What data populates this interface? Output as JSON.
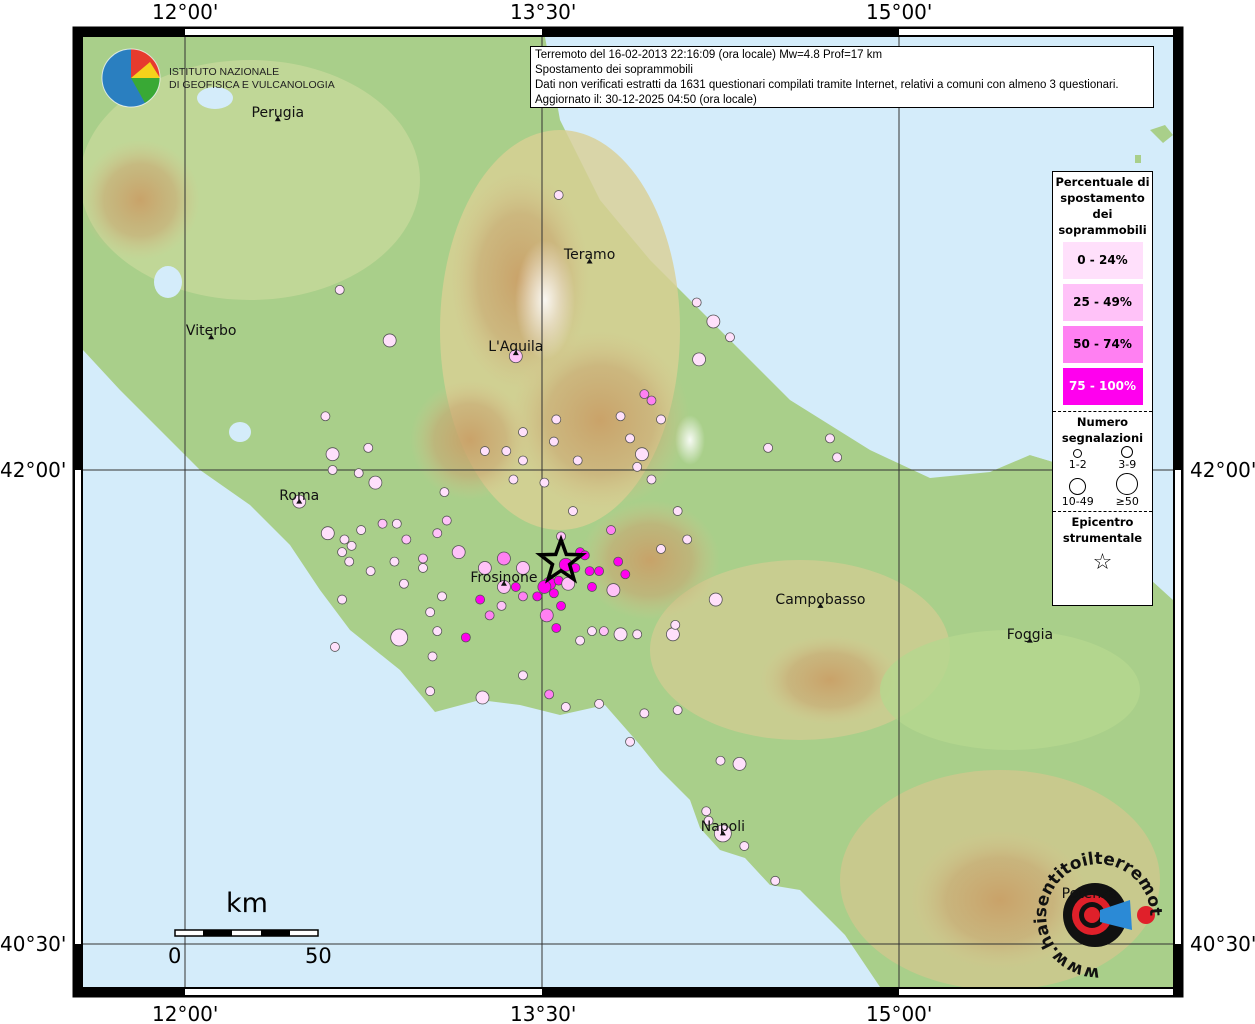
{
  "info_box": {
    "line1": "Terremoto del 16-02-2013 22:16:09 (ora locale) Mw=4.8 Prof=17 km",
    "line2": "Spostamento dei soprammobili",
    "line3": "Dati non verificati estratti da 1631 questionari compilati tramite Internet, relativi a comuni con almeno 3 questionari.",
    "line4": "Aggiornato il: 30-12-2025 04:50 (ora locale)"
  },
  "logo_ingv": {
    "line1": "ISTITUTO NAZIONALE",
    "line2": "DI GEOFISICA E VULCANOLOGIA"
  },
  "logo_hst": {
    "text": "www.haisentitoilterremoto.it"
  },
  "axes": {
    "lon_labels": [
      "12°00'",
      "13°30'",
      "15°00'"
    ],
    "lat_labels": [
      "42°00'",
      "40°30'"
    ]
  },
  "scale": {
    "unit": "km",
    "min": "0",
    "max": "50"
  },
  "legend": {
    "title": "Percentuale di spostamento dei soprammobili",
    "classes": [
      {
        "label": "0 - 24%",
        "color": "#ffe0fb"
      },
      {
        "label": "25 - 49%",
        "color": "#ffc2f8"
      },
      {
        "label": "50 - 74%",
        "color": "#ff80f2"
      },
      {
        "label": "75 - 100%",
        "color": "#ff00ee"
      }
    ],
    "count_title": "Numero segnalazioni",
    "counts": [
      "1-2",
      "3-9",
      "10-49",
      "≥50"
    ],
    "epicenter_title": "Epicentro strumentale"
  },
  "epicenter": {
    "lon": 13.58,
    "lat": 41.71
  },
  "cities": [
    {
      "name": "Perugia",
      "lon": 12.39,
      "lat": 43.11
    },
    {
      "name": "Teramo",
      "lon": 13.7,
      "lat": 42.66
    },
    {
      "name": "L'Aquila",
      "lon": 13.39,
      "lat": 42.37
    },
    {
      "name": "Viterbo",
      "lon": 12.11,
      "lat": 42.42
    },
    {
      "name": "Roma",
      "lon": 12.48,
      "lat": 41.9
    },
    {
      "name": "Frosinone",
      "lon": 13.34,
      "lat": 41.64
    },
    {
      "name": "Campobasso",
      "lon": 14.67,
      "lat": 41.57
    },
    {
      "name": "Foggia",
      "lon": 15.55,
      "lat": 41.46
    },
    {
      "name": "Napoli",
      "lon": 14.26,
      "lat": 40.85
    },
    {
      "name": "Potenza",
      "lon": 15.8,
      "lat": 40.64
    }
  ],
  "observations": [
    [
      13.57,
      42.87,
      0,
      0
    ],
    [
      12.65,
      42.57,
      0,
      0
    ],
    [
      12.86,
      42.41,
      0,
      1
    ],
    [
      13.39,
      42.36,
      1,
      1
    ],
    [
      14.15,
      42.53,
      0,
      0
    ],
    [
      14.22,
      42.47,
      0,
      1
    ],
    [
      14.29,
      42.42,
      0,
      0
    ],
    [
      14.16,
      42.35,
      0,
      1
    ],
    [
      13.93,
      42.24,
      2,
      0
    ],
    [
      13.96,
      42.22,
      2,
      0
    ],
    [
      13.83,
      42.17,
      0,
      0
    ],
    [
      14.0,
      42.16,
      0,
      0
    ],
    [
      13.87,
      42.1,
      0,
      0
    ],
    [
      13.92,
      42.05,
      0,
      1
    ],
    [
      13.55,
      42.09,
      0,
      0
    ],
    [
      13.26,
      42.06,
      0,
      0
    ],
    [
      13.35,
      42.06,
      0,
      0
    ],
    [
      13.42,
      42.03,
      0,
      0
    ],
    [
      13.65,
      42.03,
      0,
      0
    ],
    [
      13.9,
      42.01,
      0,
      0
    ],
    [
      13.96,
      41.97,
      0,
      0
    ],
    [
      14.45,
      42.07,
      0,
      0
    ],
    [
      14.71,
      42.1,
      0,
      0
    ],
    [
      14.74,
      42.04,
      0,
      0
    ],
    [
      12.59,
      42.17,
      0,
      0
    ],
    [
      12.62,
      42.05,
      0,
      1
    ],
    [
      12.77,
      42.07,
      0,
      0
    ],
    [
      12.73,
      41.99,
      0,
      0
    ],
    [
      12.8,
      41.96,
      0,
      1
    ],
    [
      12.62,
      42.0,
      0,
      0
    ],
    [
      12.48,
      41.9,
      0,
      1
    ],
    [
      12.6,
      41.8,
      0,
      1
    ],
    [
      12.67,
      41.78,
      0,
      0
    ],
    [
      12.74,
      41.81,
      0,
      0
    ],
    [
      12.83,
      41.83,
      1,
      0
    ],
    [
      12.89,
      41.83,
      0,
      0
    ],
    [
      12.93,
      41.78,
      1,
      0
    ],
    [
      12.7,
      41.76,
      0,
      0
    ],
    [
      12.66,
      41.74,
      0,
      0
    ],
    [
      12.69,
      41.71,
      0,
      0
    ],
    [
      12.78,
      41.68,
      0,
      0
    ],
    [
      12.88,
      41.71,
      0,
      0
    ],
    [
      12.92,
      41.64,
      0,
      0
    ],
    [
      13.0,
      41.72,
      1,
      0
    ],
    [
      13.06,
      41.8,
      1,
      0
    ],
    [
      13.1,
      41.84,
      1,
      0
    ],
    [
      13.15,
      41.74,
      1,
      1
    ],
    [
      13.26,
      41.69,
      1,
      1
    ],
    [
      13.34,
      41.72,
      2,
      1
    ],
    [
      13.42,
      41.69,
      1,
      1
    ],
    [
      13.58,
      41.79,
      1,
      0
    ],
    [
      13.63,
      41.87,
      0,
      0
    ],
    [
      13.79,
      41.81,
      2,
      0
    ],
    [
      13.66,
      41.74,
      3,
      0
    ],
    [
      13.68,
      41.73,
      3,
      0
    ],
    [
      13.6,
      41.7,
      3,
      1
    ],
    [
      13.64,
      41.69,
      3,
      0
    ],
    [
      13.7,
      41.68,
      3,
      0
    ],
    [
      13.74,
      41.68,
      3,
      0
    ],
    [
      13.82,
      41.71,
      3,
      0
    ],
    [
      13.85,
      41.67,
      3,
      0
    ],
    [
      13.71,
      41.63,
      3,
      0
    ],
    [
      13.8,
      41.62,
      1,
      1
    ],
    [
      13.53,
      41.64,
      3,
      1
    ],
    [
      13.51,
      41.63,
      3,
      1
    ],
    [
      13.57,
      41.65,
      3,
      0
    ],
    [
      13.61,
      41.64,
      1,
      1
    ],
    [
      13.39,
      41.63,
      3,
      0
    ],
    [
      13.42,
      41.6,
      2,
      0
    ],
    [
      13.48,
      41.6,
      3,
      0
    ],
    [
      13.55,
      41.61,
      3,
      0
    ],
    [
      13.58,
      41.57,
      3,
      0
    ],
    [
      13.34,
      41.63,
      1,
      1
    ],
    [
      13.24,
      41.59,
      3,
      0
    ],
    [
      13.33,
      41.57,
      1,
      0
    ],
    [
      13.52,
      41.54,
      2,
      1
    ],
    [
      13.56,
      41.5,
      3,
      0
    ],
    [
      13.28,
      41.54,
      2,
      0
    ],
    [
      13.18,
      41.47,
      3,
      0
    ],
    [
      12.9,
      41.47,
      0,
      2
    ],
    [
      13.06,
      41.49,
      0,
      0
    ],
    [
      13.08,
      41.6,
      0,
      0
    ],
    [
      13.03,
      41.55,
      0,
      0
    ],
    [
      12.66,
      41.59,
      0,
      0
    ],
    [
      12.63,
      41.44,
      0,
      0
    ],
    [
      13.04,
      41.41,
      0,
      0
    ],
    [
      13.25,
      41.28,
      0,
      1
    ],
    [
      13.03,
      41.3,
      0,
      0
    ],
    [
      13.42,
      41.35,
      0,
      0
    ],
    [
      13.53,
      41.29,
      2,
      0
    ],
    [
      13.6,
      41.25,
      0,
      0
    ],
    [
      13.74,
      41.26,
      0,
      0
    ],
    [
      13.66,
      41.46,
      0,
      0
    ],
    [
      13.71,
      41.49,
      0,
      0
    ],
    [
      13.76,
      41.49,
      1,
      0
    ],
    [
      13.83,
      41.48,
      0,
      1
    ],
    [
      13.9,
      41.48,
      0,
      0
    ],
    [
      14.05,
      41.48,
      0,
      1
    ],
    [
      14.06,
      41.51,
      0,
      0
    ],
    [
      14.23,
      41.59,
      0,
      1
    ],
    [
      14.07,
      41.87,
      0,
      0
    ],
    [
      14.11,
      41.78,
      0,
      0
    ],
    [
      14.0,
      41.75,
      0,
      0
    ],
    [
      13.87,
      41.14,
      0,
      0
    ],
    [
      13.93,
      41.23,
      0,
      0
    ],
    [
      14.07,
      41.24,
      0,
      0
    ],
    [
      14.25,
      41.08,
      0,
      0
    ],
    [
      14.33,
      41.07,
      0,
      1
    ],
    [
      14.19,
      40.92,
      0,
      0
    ],
    [
      14.2,
      40.89,
      0,
      0
    ],
    [
      14.26,
      40.85,
      0,
      2
    ],
    [
      14.48,
      40.7,
      0,
      0
    ],
    [
      14.35,
      40.81,
      0,
      0
    ],
    [
      13.38,
      41.97,
      0,
      0
    ],
    [
      13.51,
      41.96,
      0,
      0
    ],
    [
      13.42,
      42.12,
      0,
      0
    ],
    [
      13.56,
      42.16,
      0,
      0
    ],
    [
      13.09,
      41.93,
      0,
      0
    ],
    [
      13.0,
      41.69,
      0,
      0
    ]
  ]
}
